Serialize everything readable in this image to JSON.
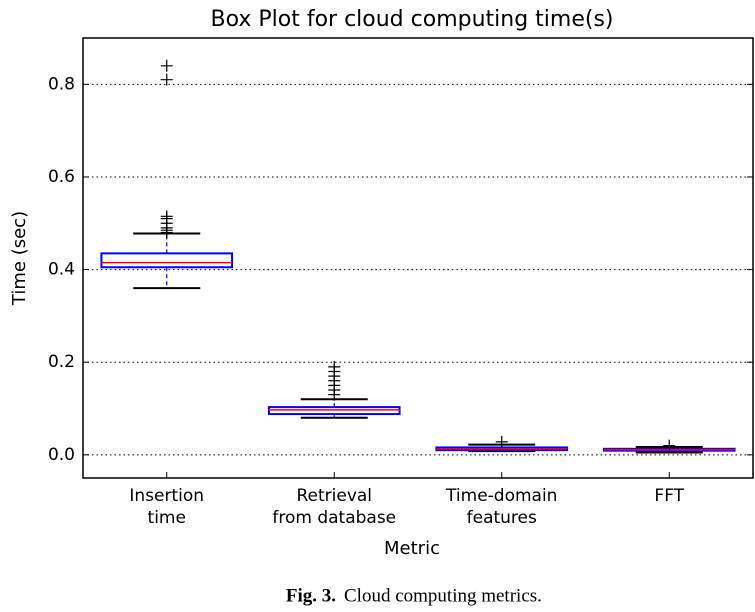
{
  "chart_data": {
    "type": "box",
    "title": "Box Plot for cloud computing time(s)",
    "x_label": "Metric",
    "y_label": "Time (sec)",
    "categories": [
      "Insertion\ntime",
      "Retrieval\nfrom database",
      "Time-domain\nfeatures",
      "FFT"
    ],
    "boxes": [
      {
        "whislo": 0.36,
        "q1": 0.405,
        "med": 0.415,
        "q3": 0.435,
        "whishi": 0.478,
        "fliers": [
          0.48,
          0.485,
          0.49,
          0.5,
          0.51,
          0.515,
          0.81,
          0.84
        ]
      },
      {
        "whislo": 0.08,
        "q1": 0.088,
        "med": 0.097,
        "q3": 0.103,
        "whishi": 0.12,
        "fliers": [
          0.13,
          0.14,
          0.15,
          0.16,
          0.17,
          0.18,
          0.19
        ]
      },
      {
        "whislo": 0.008,
        "q1": 0.01,
        "med": 0.013,
        "q3": 0.016,
        "whishi": 0.022,
        "fliers": [
          0.028
        ]
      },
      {
        "whislo": 0.005,
        "q1": 0.009,
        "med": 0.011,
        "q3": 0.013,
        "whishi": 0.017,
        "fliers": [
          0.02
        ]
      }
    ],
    "box_color": "#0000ff",
    "median_color": "#ff0000",
    "whisker_color": "#000000",
    "ylim": [
      -0.05,
      0.9
    ],
    "yticks": [
      {
        "value": 0,
        "label": "0.0"
      },
      0.2,
      0.4,
      0.6,
      0.8
    ],
    "grid": true
  },
  "caption": {
    "label": "Fig. 3.",
    "text": "Cloud computing metrics."
  }
}
